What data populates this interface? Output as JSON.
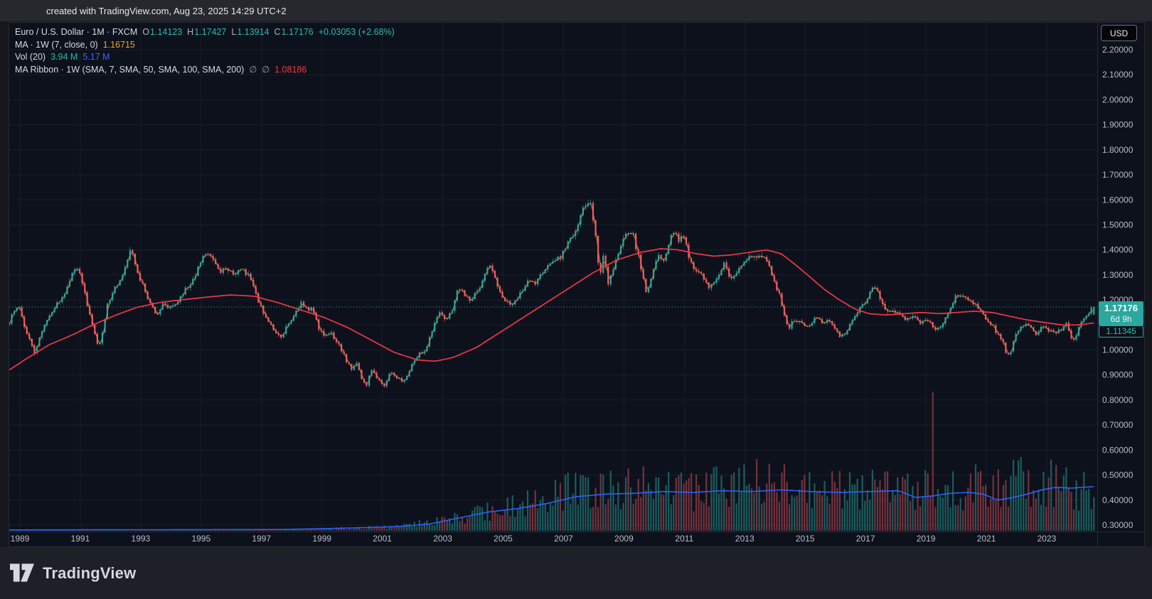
{
  "header": {
    "credit": "created with TradingView.com, Aug 23, 2025 14:29 UTC+2"
  },
  "legend": {
    "symbol": "Euro / U.S. Dollar · 1M · FXCM",
    "ohlc": [
      {
        "label": "O",
        "value": "1.14123"
      },
      {
        "label": "H",
        "value": "1.17427"
      },
      {
        "label": "L",
        "value": "1.13914"
      },
      {
        "label": "C",
        "value": "1.17176"
      }
    ],
    "change": "+0.03053 (+2.68%)",
    "ma_line": {
      "label": "MA · 1W (7, close, 0)",
      "value": "1.16715"
    },
    "vol_line": {
      "label": "Vol (20)",
      "volume": "3.94 M",
      "volume_ma": "5.17 M"
    },
    "ribbon_line": {
      "label": "MA Ribbon · 1W (SMA, 7, SMA, 50, SMA, 100, SMA, 200)",
      "empty1": "∅",
      "empty2": "∅",
      "value": "1.08186"
    }
  },
  "price_axis": {
    "currency": "USD",
    "visible_ticks": [
      "2.20000",
      "2.10000",
      "2.00000",
      "1.90000",
      "1.80000",
      "1.70000",
      "1.60000",
      "1.50000",
      "1.40000",
      "1.30000",
      "1.20000",
      "1.00000",
      "0.90000",
      "0.80000",
      "0.70000",
      "0.60000",
      "0.50000",
      "0.40000",
      "0.30000"
    ],
    "last_price_badge": {
      "price": "1.17176",
      "countdown": "6d 9h"
    },
    "secondary_badge": {
      "price": "1.11345"
    }
  },
  "time_axis": {
    "ticks": [
      "1989",
      "1991",
      "1993",
      "1995",
      "1997",
      "1999",
      "2001",
      "2003",
      "2005",
      "2007",
      "2009",
      "2011",
      "2013",
      "2015",
      "2017",
      "2019",
      "2021",
      "2023"
    ]
  },
  "footer": {
    "brand": "TradingView"
  },
  "colors": {
    "up": "#2aa79e",
    "down": "#f15b63",
    "ma_ribbon_red": "#f23645",
    "volume_ma_blue": "#2962ff",
    "ma_orange": "#f0a12e",
    "accent_teal": "#2abbac",
    "axis_text": "#b8bdc9",
    "grid": "rgba(170,184,212,0.08)",
    "chart_bg": "#0d111c",
    "border": "#262b38"
  },
  "chart_data": {
    "type": "candlestick",
    "symbol": "Euro / U.S. Dollar",
    "interval": "1M",
    "exchange": "FXCM",
    "last_bar": {
      "open": 1.14123,
      "high": 1.17427,
      "low": 1.13914,
      "close": 1.17176,
      "change": "+0.03053 (+2.68%)",
      "volume_millions": 3.94
    },
    "indicators": {
      "ma_7w_close": 1.16715,
      "vol_ma_20": 5.17,
      "ma_ribbon_value": 1.08186,
      "secondary_price_label": 1.11345
    },
    "price_line": {
      "value": 1.17176,
      "style": "dotted"
    },
    "y_axis": {
      "grid_min": 0.3,
      "grid_max": 2.2,
      "grid_step": 0.1,
      "label_format": "5dp"
    },
    "x_axis": {
      "tick_years": [
        1989,
        1991,
        1993,
        1995,
        1997,
        1999,
        2001,
        2003,
        2005,
        2007,
        2009,
        2011,
        2013,
        2015,
        2017,
        2019,
        2021,
        2023
      ]
    },
    "domain_years": [
      1988.65,
      2025.68
    ],
    "series": {
      "close_anchors": [
        [
          1988.65,
          1.1
        ],
        [
          1988.75,
          1.15
        ],
        [
          1988.95,
          1.18
        ],
        [
          1989.2,
          1.08
        ],
        [
          1989.5,
          0.99
        ],
        [
          1989.7,
          1.05
        ],
        [
          1989.95,
          1.12
        ],
        [
          1990.2,
          1.17
        ],
        [
          1990.5,
          1.22
        ],
        [
          1990.8,
          1.31
        ],
        [
          1991.0,
          1.33
        ],
        [
          1991.15,
          1.26
        ],
        [
          1991.4,
          1.14
        ],
        [
          1991.55,
          1.07
        ],
        [
          1991.7,
          1.0
        ],
        [
          1991.85,
          1.08
        ],
        [
          1992.0,
          1.18
        ],
        [
          1992.2,
          1.24
        ],
        [
          1992.4,
          1.27
        ],
        [
          1992.6,
          1.33
        ],
        [
          1992.75,
          1.4
        ],
        [
          1992.9,
          1.37
        ],
        [
          1993.1,
          1.29
        ],
        [
          1993.3,
          1.23
        ],
        [
          1993.5,
          1.17
        ],
        [
          1993.7,
          1.14
        ],
        [
          1993.9,
          1.19
        ],
        [
          1994.1,
          1.16
        ],
        [
          1994.35,
          1.19
        ],
        [
          1994.6,
          1.23
        ],
        [
          1994.85,
          1.27
        ],
        [
          1995.05,
          1.31
        ],
        [
          1995.25,
          1.38
        ],
        [
          1995.45,
          1.39
        ],
        [
          1995.65,
          1.35
        ],
        [
          1995.85,
          1.31
        ],
        [
          1996.05,
          1.33
        ],
        [
          1996.3,
          1.31
        ],
        [
          1996.55,
          1.32
        ],
        [
          1996.8,
          1.3
        ],
        [
          1997.0,
          1.25
        ],
        [
          1997.2,
          1.18
        ],
        [
          1997.45,
          1.13
        ],
        [
          1997.7,
          1.08
        ],
        [
          1997.9,
          1.05
        ],
        [
          1998.1,
          1.09
        ],
        [
          1998.35,
          1.13
        ],
        [
          1998.6,
          1.19
        ],
        [
          1998.8,
          1.16
        ],
        [
          1999.0,
          1.17
        ],
        [
          1999.2,
          1.09
        ],
        [
          1999.45,
          1.05
        ],
        [
          1999.65,
          1.07
        ],
        [
          1999.9,
          1.02
        ],
        [
          2000.1,
          0.97
        ],
        [
          2000.35,
          0.92
        ],
        [
          2000.5,
          0.95
        ],
        [
          2000.7,
          0.88
        ],
        [
          2000.85,
          0.85
        ],
        [
          2001.0,
          0.93
        ],
        [
          2001.2,
          0.89
        ],
        [
          2001.45,
          0.85
        ],
        [
          2001.65,
          0.91
        ],
        [
          2001.9,
          0.89
        ],
        [
          2002.1,
          0.87
        ],
        [
          2002.35,
          0.93
        ],
        [
          2002.6,
          0.98
        ],
        [
          2002.85,
          1.0
        ],
        [
          2003.1,
          1.08
        ],
        [
          2003.35,
          1.15
        ],
        [
          2003.55,
          1.12
        ],
        [
          2003.8,
          1.17
        ],
        [
          2003.99,
          1.25
        ],
        [
          2004.15,
          1.23
        ],
        [
          2004.4,
          1.2
        ],
        [
          2004.65,
          1.23
        ],
        [
          2004.9,
          1.3
        ],
        [
          2005.0,
          1.35
        ],
        [
          2005.2,
          1.29
        ],
        [
          2005.5,
          1.21
        ],
        [
          2005.8,
          1.18
        ],
        [
          2006.0,
          1.21
        ],
        [
          2006.3,
          1.27
        ],
        [
          2006.6,
          1.27
        ],
        [
          2006.9,
          1.32
        ],
        [
          2007.15,
          1.34
        ],
        [
          2007.45,
          1.37
        ],
        [
          2007.7,
          1.42
        ],
        [
          2007.95,
          1.46
        ],
        [
          2008.15,
          1.55
        ],
        [
          2008.35,
          1.58
        ],
        [
          2008.5,
          1.58
        ],
        [
          2008.65,
          1.47
        ],
        [
          2008.8,
          1.28
        ],
        [
          2008.95,
          1.39
        ],
        [
          2009.1,
          1.27
        ],
        [
          2009.3,
          1.33
        ],
        [
          2009.55,
          1.42
        ],
        [
          2009.8,
          1.48
        ],
        [
          2009.95,
          1.46
        ],
        [
          2010.15,
          1.36
        ],
        [
          2010.4,
          1.23
        ],
        [
          2010.6,
          1.31
        ],
        [
          2010.8,
          1.39
        ],
        [
          2010.95,
          1.34
        ],
        [
          2011.15,
          1.41
        ],
        [
          2011.3,
          1.48
        ],
        [
          2011.5,
          1.44
        ],
        [
          2011.7,
          1.45
        ],
        [
          2011.9,
          1.35
        ],
        [
          2012.1,
          1.32
        ],
        [
          2012.3,
          1.31
        ],
        [
          2012.5,
          1.25
        ],
        [
          2012.7,
          1.26
        ],
        [
          2012.9,
          1.3
        ],
        [
          2013.05,
          1.36
        ],
        [
          2013.25,
          1.28
        ],
        [
          2013.5,
          1.31
        ],
        [
          2013.75,
          1.35
        ],
        [
          2013.95,
          1.37
        ],
        [
          2014.15,
          1.38
        ],
        [
          2014.35,
          1.38
        ],
        [
          2014.6,
          1.34
        ],
        [
          2014.8,
          1.25
        ],
        [
          2014.97,
          1.21
        ],
        [
          2015.15,
          1.12
        ],
        [
          2015.25,
          1.07
        ],
        [
          2015.4,
          1.12
        ],
        [
          2015.6,
          1.11
        ],
        [
          2015.8,
          1.1
        ],
        [
          2015.97,
          1.09
        ],
        [
          2016.2,
          1.14
        ],
        [
          2016.4,
          1.11
        ],
        [
          2016.6,
          1.12
        ],
        [
          2016.8,
          1.1
        ],
        [
          2016.97,
          1.05
        ],
        [
          2017.1,
          1.06
        ],
        [
          2017.3,
          1.09
        ],
        [
          2017.55,
          1.14
        ],
        [
          2017.75,
          1.18
        ],
        [
          2017.95,
          1.2
        ],
        [
          2018.1,
          1.25
        ],
        [
          2018.3,
          1.23
        ],
        [
          2018.5,
          1.17
        ],
        [
          2018.7,
          1.16
        ],
        [
          2018.95,
          1.15
        ],
        [
          2019.15,
          1.13
        ],
        [
          2019.4,
          1.12
        ],
        [
          2019.55,
          1.14
        ],
        [
          2019.75,
          1.11
        ],
        [
          2019.95,
          1.12
        ],
        [
          2020.15,
          1.1
        ],
        [
          2020.25,
          1.08
        ],
        [
          2020.45,
          1.1
        ],
        [
          2020.65,
          1.14
        ],
        [
          2020.85,
          1.18
        ],
        [
          2020.99,
          1.22
        ],
        [
          2021.15,
          1.21
        ],
        [
          2021.35,
          1.2
        ],
        [
          2021.55,
          1.19
        ],
        [
          2021.75,
          1.16
        ],
        [
          2021.95,
          1.13
        ],
        [
          2022.15,
          1.11
        ],
        [
          2022.35,
          1.07
        ],
        [
          2022.55,
          1.04
        ],
        [
          2022.72,
          0.97
        ],
        [
          2022.85,
          0.99
        ],
        [
          2023.0,
          1.07
        ],
        [
          2023.2,
          1.09
        ],
        [
          2023.4,
          1.1
        ],
        [
          2023.55,
          1.09
        ],
        [
          2023.75,
          1.06
        ],
        [
          2023.95,
          1.1
        ],
        [
          2024.15,
          1.08
        ],
        [
          2024.35,
          1.07
        ],
        [
          2024.55,
          1.08
        ],
        [
          2024.72,
          1.11
        ],
        [
          2024.87,
          1.05
        ],
        [
          2025.0,
          1.04
        ],
        [
          2025.15,
          1.08
        ],
        [
          2025.3,
          1.13
        ],
        [
          2025.45,
          1.14
        ],
        [
          2025.58,
          1.16
        ],
        [
          2025.68,
          1.17176
        ]
      ],
      "ma_ribbon_red_anchors": [
        [
          1988.65,
          0.92
        ],
        [
          1989.3,
          0.97
        ],
        [
          1990.0,
          1.02
        ],
        [
          1990.8,
          1.06
        ],
        [
          1991.5,
          1.1
        ],
        [
          1992.3,
          1.14
        ],
        [
          1993.0,
          1.17
        ],
        [
          1993.8,
          1.19
        ],
        [
          1994.5,
          1.2
        ],
        [
          1995.3,
          1.21
        ],
        [
          1996.2,
          1.22
        ],
        [
          1997.0,
          1.215
        ],
        [
          1997.8,
          1.19
        ],
        [
          1998.6,
          1.16
        ],
        [
          1999.4,
          1.13
        ],
        [
          2000.2,
          1.09
        ],
        [
          2001.0,
          1.04
        ],
        [
          2001.8,
          0.99
        ],
        [
          2002.6,
          0.96
        ],
        [
          2003.2,
          0.955
        ],
        [
          2003.8,
          0.97
        ],
        [
          2004.6,
          1.01
        ],
        [
          2005.4,
          1.07
        ],
        [
          2006.2,
          1.13
        ],
        [
          2007.0,
          1.19
        ],
        [
          2007.8,
          1.25
        ],
        [
          2008.6,
          1.31
        ],
        [
          2009.4,
          1.36
        ],
        [
          2010.2,
          1.39
        ],
        [
          2010.9,
          1.405
        ],
        [
          2011.5,
          1.4
        ],
        [
          2012.1,
          1.385
        ],
        [
          2012.7,
          1.375
        ],
        [
          2013.3,
          1.38
        ],
        [
          2013.9,
          1.39
        ],
        [
          2014.5,
          1.4
        ],
        [
          2015.0,
          1.385
        ],
        [
          2015.5,
          1.34
        ],
        [
          2016.0,
          1.29
        ],
        [
          2016.5,
          1.24
        ],
        [
          2017.0,
          1.2
        ],
        [
          2017.5,
          1.165
        ],
        [
          2018.0,
          1.145
        ],
        [
          2018.6,
          1.14
        ],
        [
          2019.2,
          1.145
        ],
        [
          2019.8,
          1.15
        ],
        [
          2020.4,
          1.145
        ],
        [
          2021.0,
          1.15
        ],
        [
          2021.6,
          1.155
        ],
        [
          2022.2,
          1.15
        ],
        [
          2022.8,
          1.135
        ],
        [
          2023.4,
          1.12
        ],
        [
          2024.0,
          1.11
        ],
        [
          2024.6,
          1.1
        ],
        [
          2025.1,
          1.1
        ],
        [
          2025.68,
          1.108
        ]
      ],
      "volume_ma_anchors_millions": [
        [
          1988.65,
          0.1
        ],
        [
          1998.0,
          0.15
        ],
        [
          2000.0,
          0.3
        ],
        [
          2002.0,
          0.5
        ],
        [
          2003.0,
          0.8
        ],
        [
          2004.0,
          1.5
        ],
        [
          2005.0,
          2.2
        ],
        [
          2006.0,
          2.6
        ],
        [
          2007.0,
          3.2
        ],
        [
          2008.0,
          4.0
        ],
        [
          2009.0,
          4.3
        ],
        [
          2010.0,
          4.4
        ],
        [
          2011.0,
          4.6
        ],
        [
          2012.0,
          4.5
        ],
        [
          2013.0,
          4.7
        ],
        [
          2014.0,
          4.6
        ],
        [
          2015.0,
          4.8
        ],
        [
          2016.0,
          4.6
        ],
        [
          2017.0,
          4.5
        ],
        [
          2018.0,
          4.6
        ],
        [
          2019.0,
          4.7
        ],
        [
          2019.6,
          3.9
        ],
        [
          2020.2,
          4.1
        ],
        [
          2020.8,
          4.4
        ],
        [
          2021.4,
          4.5
        ],
        [
          2021.9,
          4.3
        ],
        [
          2022.4,
          3.6
        ],
        [
          2022.9,
          3.9
        ],
        [
          2023.4,
          4.3
        ],
        [
          2023.9,
          4.8
        ],
        [
          2024.4,
          5.1
        ],
        [
          2024.9,
          5.0
        ],
        [
          2025.3,
          5.1
        ],
        [
          2025.68,
          5.17
        ]
      ],
      "volume_profile_anchors_millions": [
        [
          1988.65,
          0.05
        ],
        [
          1996.0,
          0.08
        ],
        [
          1999.0,
          0.2
        ],
        [
          2001.0,
          0.35
        ],
        [
          2002.0,
          0.5
        ],
        [
          2003.0,
          0.9
        ],
        [
          2004.0,
          1.6
        ],
        [
          2005.0,
          2.3
        ],
        [
          2006.0,
          2.7
        ],
        [
          2007.0,
          3.4
        ],
        [
          2008.0,
          4.5
        ],
        [
          2009.0,
          4.5
        ],
        [
          2010.0,
          4.8
        ],
        [
          2011.0,
          4.8
        ],
        [
          2012.0,
          4.4
        ],
        [
          2013.0,
          5.0
        ],
        [
          2014.0,
          5.2
        ],
        [
          2015.0,
          5.5
        ],
        [
          2016.0,
          4.8
        ],
        [
          2017.0,
          4.6
        ],
        [
          2018.0,
          4.4
        ],
        [
          2019.0,
          4.2
        ],
        [
          2020.0,
          4.6
        ],
        [
          2021.0,
          4.2
        ],
        [
          2022.0,
          5.2
        ],
        [
          2023.0,
          5.4
        ],
        [
          2024.0,
          5.6
        ],
        [
          2025.0,
          4.8
        ],
        [
          2025.68,
          3.94
        ]
      ],
      "volume_spike": {
        "year": 2020.2,
        "millions": 16.3,
        "direction": "down"
      }
    }
  }
}
